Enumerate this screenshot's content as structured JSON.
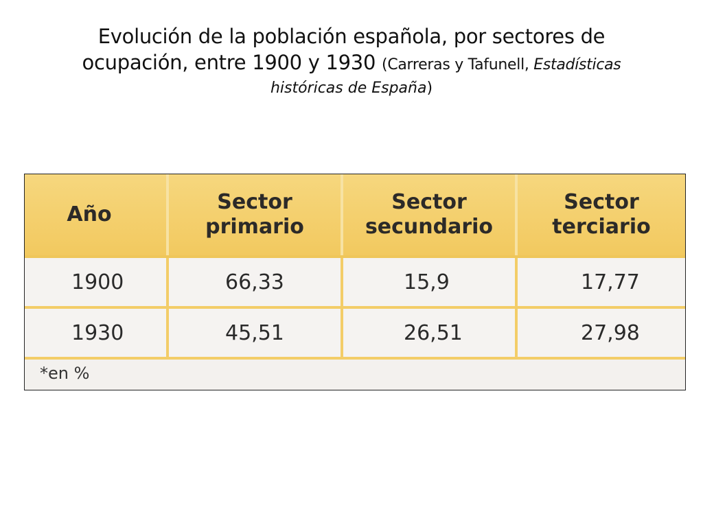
{
  "title": {
    "line1": "Evolución de la población española, por sectores de",
    "line2_main": "ocupación, entre 1900 y 1930",
    "line2_paren_open": "(Carreras y Tafunell, ",
    "line2_italic": "Estadísticas",
    "line3_italic": "históricas de España",
    "line3_paren_close": ")"
  },
  "table": {
    "headers": {
      "year": "Año",
      "primary_1": "Sector",
      "primary_2": "primario",
      "secondary_1": "Sector",
      "secondary_2": "secundario",
      "tertiary_1": "Sector",
      "tertiary_2": "terciario"
    },
    "rows": [
      {
        "year": "1900",
        "primary": "66,33",
        "secondary": "15,9",
        "tertiary": "17,77"
      },
      {
        "year": "1930",
        "primary": "45,51",
        "secondary": "26,51",
        "tertiary": "27,98"
      }
    ],
    "footnote": "*en %"
  }
}
